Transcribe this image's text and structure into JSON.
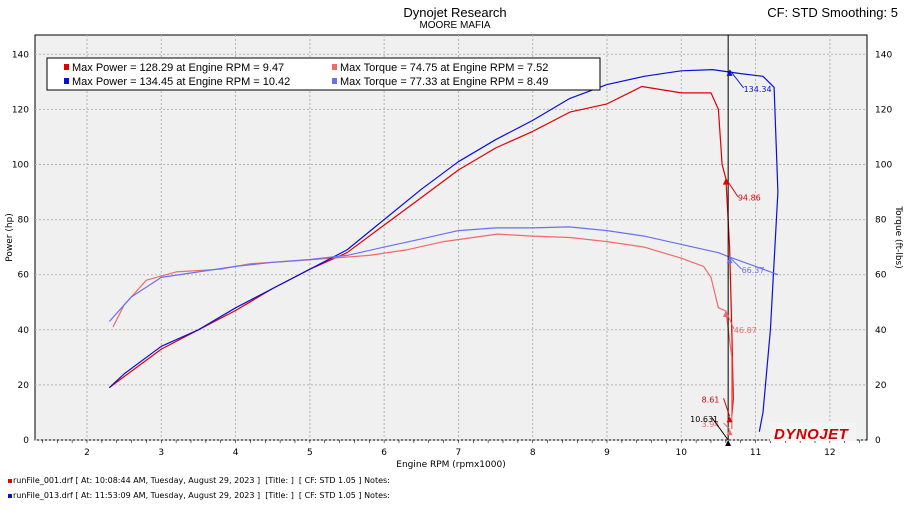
{
  "header": {
    "title": "Dynojet Research",
    "subtitle": "MOORE MAFIA",
    "cf_info": "CF: STD Smoothing: 5"
  },
  "colors": {
    "run1_power": "#e00000",
    "run1_torque": "#f06a6a",
    "run2_power": "#0a10d8",
    "run2_torque": "#6a70f0",
    "background": "#f0f0f0",
    "grid": "#b4b4b4"
  },
  "chart_data": {
    "type": "line",
    "xlabel": "Engine RPM (rpmx1000)",
    "ylabel": "Power (hp)",
    "ylabel_right": "Torque (ft-lbs)",
    "xlim": [
      1.3,
      12.5
    ],
    "ylim": [
      0,
      147
    ],
    "ylim_right": [
      0,
      147
    ],
    "x_ticks": [
      "2",
      "3",
      "4",
      "5",
      "6",
      "7",
      "8",
      "9",
      "10",
      "11",
      "12"
    ],
    "y_ticks": [
      "0",
      "20",
      "40",
      "60",
      "80",
      "100",
      "120",
      "140"
    ],
    "y_ticks_right": [
      "0",
      "20",
      "40",
      "60",
      "80",
      "100",
      "120",
      "140"
    ],
    "grid": true,
    "legend_position": "top-left",
    "legend": [
      [
        "Max Power = 128.29 at Engine RPM = 9.47",
        "Max Torque = 74.75 at Engine RPM = 7.52"
      ],
      [
        "Max Power = 134.45 at Engine RPM = 10.42",
        "Max Torque = 77.33 at Engine RPM = 8.49"
      ]
    ],
    "series": [
      {
        "key": "run1_power",
        "points": [
          [
            2.3,
            19
          ],
          [
            2.5,
            23
          ],
          [
            3,
            33
          ],
          [
            3.5,
            40
          ],
          [
            4,
            47
          ],
          [
            4.5,
            55
          ],
          [
            5,
            62
          ],
          [
            5.5,
            68
          ],
          [
            6,
            78
          ],
          [
            6.5,
            88
          ],
          [
            7,
            98
          ],
          [
            7.5,
            106
          ],
          [
            8,
            112
          ],
          [
            8.5,
            119
          ],
          [
            9,
            122
          ],
          [
            9.47,
            128.3
          ],
          [
            10,
            126
          ],
          [
            10.4,
            126
          ],
          [
            10.5,
            120
          ],
          [
            10.55,
            100
          ],
          [
            10.6,
            94.86
          ],
          [
            10.65,
            70
          ],
          [
            10.68,
            40
          ],
          [
            10.7,
            15
          ],
          [
            10.68,
            8.61
          ]
        ]
      },
      {
        "key": "run1_torque",
        "points": [
          [
            2.35,
            41
          ],
          [
            2.5,
            49
          ],
          [
            2.8,
            58
          ],
          [
            3.2,
            61
          ],
          [
            3.8,
            62
          ],
          [
            4.2,
            64
          ],
          [
            4.8,
            65
          ],
          [
            5.3,
            66
          ],
          [
            5.8,
            67
          ],
          [
            6.3,
            69
          ],
          [
            6.8,
            72
          ],
          [
            7.52,
            74.75
          ],
          [
            8,
            74
          ],
          [
            8.5,
            73.5
          ],
          [
            9,
            72
          ],
          [
            9.5,
            70
          ],
          [
            10,
            66
          ],
          [
            10.3,
            63
          ],
          [
            10.4,
            59
          ],
          [
            10.5,
            48
          ],
          [
            10.6,
            46.87
          ],
          [
            10.68,
            30
          ],
          [
            10.68,
            3.94
          ]
        ]
      },
      {
        "key": "run2_power",
        "points": [
          [
            2.3,
            19
          ],
          [
            2.5,
            24
          ],
          [
            3,
            34
          ],
          [
            3.5,
            40
          ],
          [
            4,
            48
          ],
          [
            4.5,
            55
          ],
          [
            5,
            62
          ],
          [
            5.5,
            69
          ],
          [
            6,
            80
          ],
          [
            6.5,
            91
          ],
          [
            7,
            101
          ],
          [
            7.5,
            109
          ],
          [
            8,
            116
          ],
          [
            8.5,
            124
          ],
          [
            9,
            129
          ],
          [
            9.5,
            132
          ],
          [
            10,
            134
          ],
          [
            10.42,
            134.45
          ],
          [
            10.8,
            133
          ],
          [
            11.1,
            132
          ],
          [
            11.25,
            128
          ],
          [
            11.3,
            90
          ],
          [
            11.2,
            40
          ],
          [
            11.1,
            10
          ],
          [
            11.05,
            3
          ]
        ]
      },
      {
        "key": "run2_torque",
        "points": [
          [
            2.3,
            43
          ],
          [
            2.6,
            52
          ],
          [
            3,
            59
          ],
          [
            3.5,
            61
          ],
          [
            4,
            63
          ],
          [
            4.5,
            64.5
          ],
          [
            5,
            65.5
          ],
          [
            5.5,
            67
          ],
          [
            6,
            70
          ],
          [
            6.5,
            73
          ],
          [
            7,
            76
          ],
          [
            7.5,
            77
          ],
          [
            8,
            77
          ],
          [
            8.49,
            77.33
          ],
          [
            9,
            76
          ],
          [
            9.5,
            74
          ],
          [
            10,
            71
          ],
          [
            10.5,
            68
          ],
          [
            10.65,
            66.37
          ],
          [
            11,
            63
          ],
          [
            11.3,
            60
          ]
        ]
      }
    ],
    "annotations": [
      {
        "text": "134.34",
        "x": 10.65,
        "y": 134.34,
        "color_key": "run2_power"
      },
      {
        "text": "94.86",
        "x": 10.6,
        "y": 94.86,
        "color_key": "run1_power"
      },
      {
        "text": "66.37",
        "x": 10.65,
        "y": 66.37,
        "color_key": "run2_torque"
      },
      {
        "text": "46.87",
        "x": 10.6,
        "y": 46.87,
        "color_key": "run1_torque"
      },
      {
        "text": "8.61",
        "x": 10.65,
        "y": 8.61,
        "color_key": "run1_power"
      },
      {
        "text": "3.94",
        "x": 10.65,
        "y": 3.94,
        "color_key": "run1_torque"
      },
      {
        "text": "10.631",
        "x": 10.631,
        "y": 0,
        "color_key": "cursor"
      }
    ],
    "cursor_x": 10.631
  },
  "footer": {
    "run1": "runFile_001.drf [ At: 10:08:44 AM, Tuesday, August 29, 2023 ]  [Title: ]  [ CF: STD 1.05 ] Notes:",
    "run2": "runFile_013.drf [ At: 11:53:09 AM, Tuesday, August 29, 2023 ]  [Title: ]  [ CF: STD 1.05 ] Notes:"
  },
  "logo": {
    "text": "DYNOJET"
  }
}
